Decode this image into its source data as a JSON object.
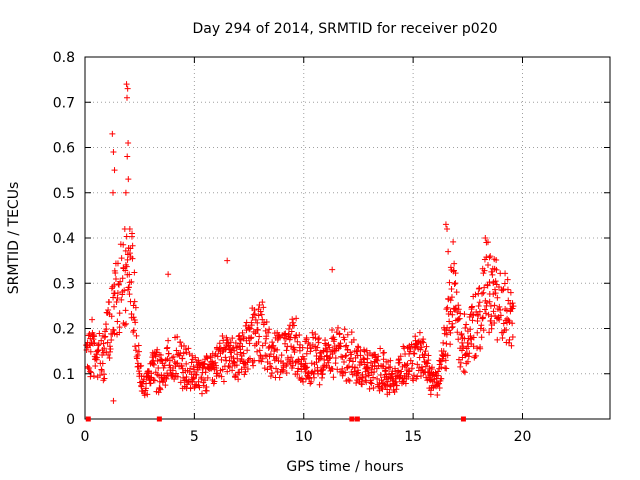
{
  "chart_data": {
    "type": "scatter",
    "title": "Day 294 of 2014, SRMTID for receiver p020",
    "xlabel": "GPS time / hours",
    "ylabel": "SRMTID / TECUs",
    "xlim": [
      0,
      24
    ],
    "ylim": [
      0,
      0.8
    ],
    "x_ticks": [
      0,
      5,
      10,
      15,
      20
    ],
    "y_ticks": [
      0,
      0.1,
      0.2,
      0.3,
      0.4,
      0.5,
      0.6,
      0.7,
      0.8
    ],
    "x_tick_labels": [
      "0",
      "5",
      "10",
      "15",
      "20"
    ],
    "y_tick_labels": [
      "0",
      "0.1",
      "0.2",
      "0.3",
      "0.4",
      "0.5",
      "0.6",
      "0.7",
      "0.8"
    ],
    "grid": true,
    "marker": "plus",
    "series_color": "#ff0000",
    "axis_markers_x": [
      0.15,
      3.4,
      12.2,
      12.45,
      17.3
    ],
    "trend": {
      "name": "SRMTID",
      "x": [
        0.05,
        0.3,
        0.6,
        0.9,
        1.2,
        1.5,
        1.8,
        2.0,
        2.2,
        2.5,
        2.8,
        3.1,
        3.4,
        3.8,
        4.2,
        4.6,
        5.0,
        5.5,
        6.0,
        6.5,
        7.0,
        7.5,
        8.0,
        8.5,
        9.0,
        9.5,
        10.0,
        10.5,
        11.0,
        11.5,
        12.0,
        12.5,
        13.0,
        13.5,
        14.0,
        14.5,
        15.0,
        15.4,
        15.8,
        16.2,
        16.5,
        16.8,
        17.2,
        17.6,
        18.0,
        18.4,
        18.8,
        19.2,
        19.6
      ],
      "y": [
        0.14,
        0.16,
        0.13,
        0.15,
        0.22,
        0.26,
        0.3,
        0.33,
        0.29,
        0.1,
        0.08,
        0.11,
        0.1,
        0.12,
        0.14,
        0.11,
        0.1,
        0.1,
        0.12,
        0.15,
        0.13,
        0.16,
        0.2,
        0.15,
        0.14,
        0.17,
        0.12,
        0.14,
        0.13,
        0.15,
        0.14,
        0.12,
        0.1,
        0.11,
        0.09,
        0.12,
        0.13,
        0.15,
        0.08,
        0.1,
        0.17,
        0.3,
        0.15,
        0.2,
        0.22,
        0.3,
        0.26,
        0.25,
        0.2
      ]
    },
    "spikes": [
      {
        "x": 1.25,
        "y": 0.63
      },
      {
        "x": 1.3,
        "y": 0.59
      },
      {
        "x": 1.35,
        "y": 0.55
      },
      {
        "x": 1.28,
        "y": 0.5
      },
      {
        "x": 1.9,
        "y": 0.74
      },
      {
        "x": 1.95,
        "y": 0.73
      },
      {
        "x": 1.92,
        "y": 0.71
      },
      {
        "x": 1.97,
        "y": 0.61
      },
      {
        "x": 1.93,
        "y": 0.58
      },
      {
        "x": 1.98,
        "y": 0.53
      },
      {
        "x": 1.87,
        "y": 0.5
      },
      {
        "x": 2.05,
        "y": 0.42
      },
      {
        "x": 1.82,
        "y": 0.42
      },
      {
        "x": 2.15,
        "y": 0.41
      },
      {
        "x": 6.5,
        "y": 0.35
      },
      {
        "x": 11.3,
        "y": 0.33
      },
      {
        "x": 16.5,
        "y": 0.43
      },
      {
        "x": 16.55,
        "y": 0.42
      },
      {
        "x": 16.6,
        "y": 0.37
      },
      {
        "x": 18.3,
        "y": 0.4
      },
      {
        "x": 18.35,
        "y": 0.39
      },
      {
        "x": 1.3,
        "y": 0.04
      },
      {
        "x": 3.8,
        "y": 0.32
      }
    ],
    "segments": [
      [
        0.0,
        2.3
      ],
      [
        2.3,
        5.0
      ],
      [
        5.0,
        15.6
      ],
      [
        15.6,
        19.7
      ]
    ]
  }
}
